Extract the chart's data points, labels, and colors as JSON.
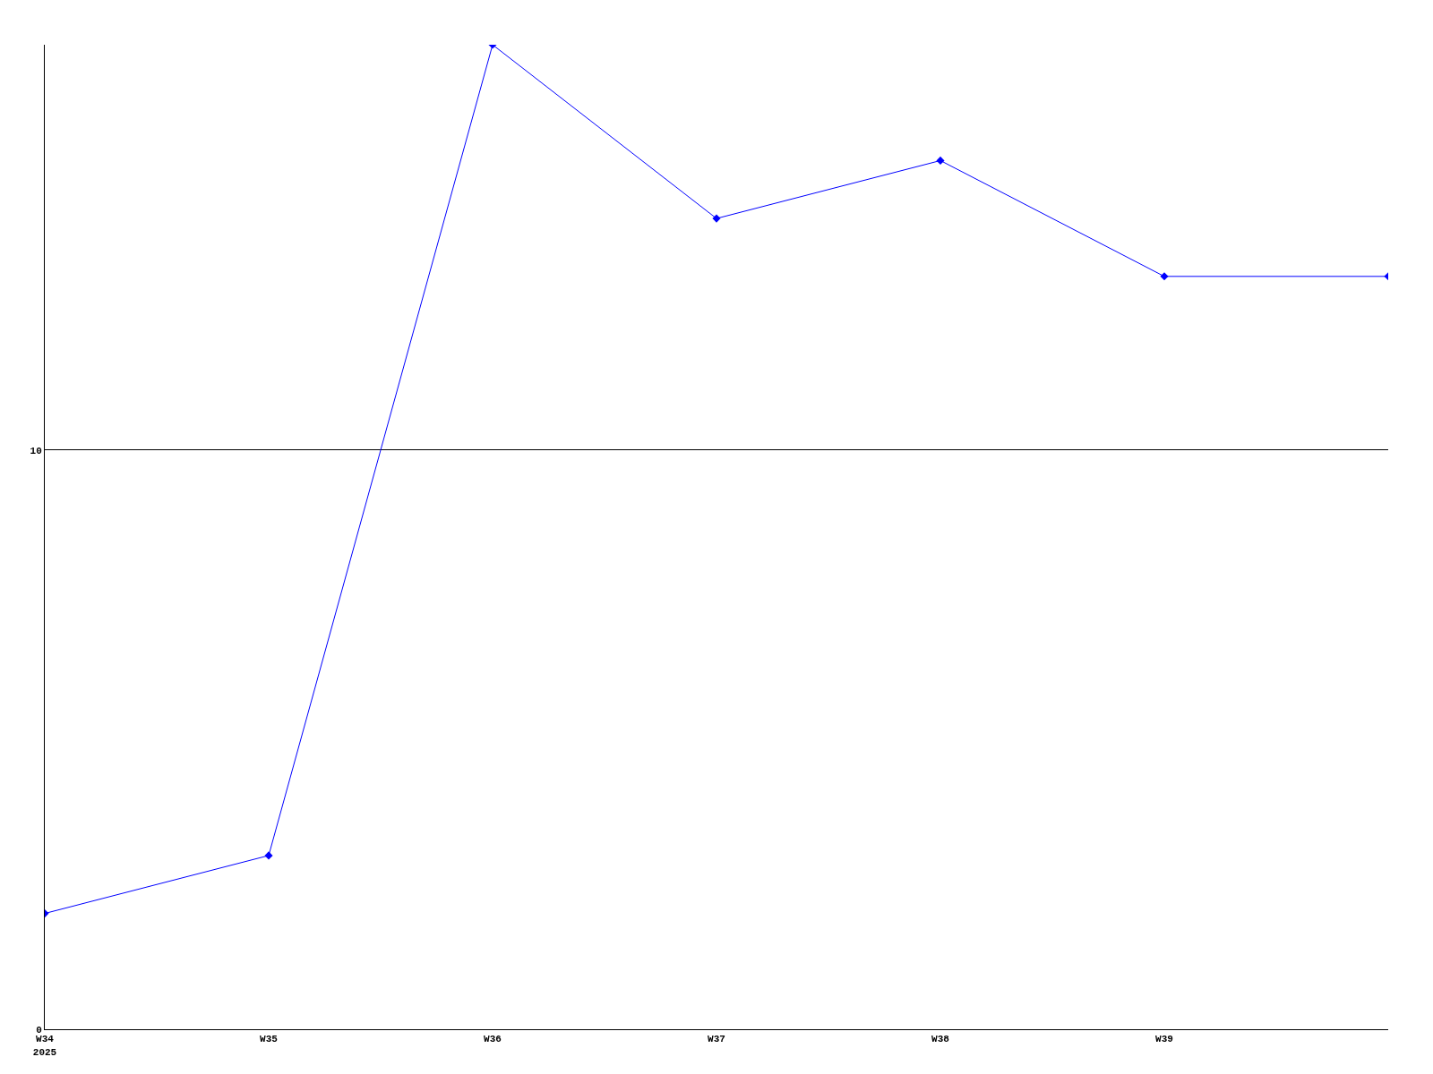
{
  "chart_data": {
    "type": "line",
    "categories": [
      "W34\n2025",
      "W35",
      "W36",
      "W37",
      "W38",
      "W39",
      null
    ],
    "series": [
      {
        "color": "#0000ff",
        "values": [
          2,
          3,
          17,
          14,
          15,
          13,
          13
        ]
      }
    ],
    "ylim": [
      0,
      17
    ],
    "yticks": [
      0,
      10
    ],
    "grid": "y",
    "marker": "diamond",
    "line_style": "solid"
  }
}
